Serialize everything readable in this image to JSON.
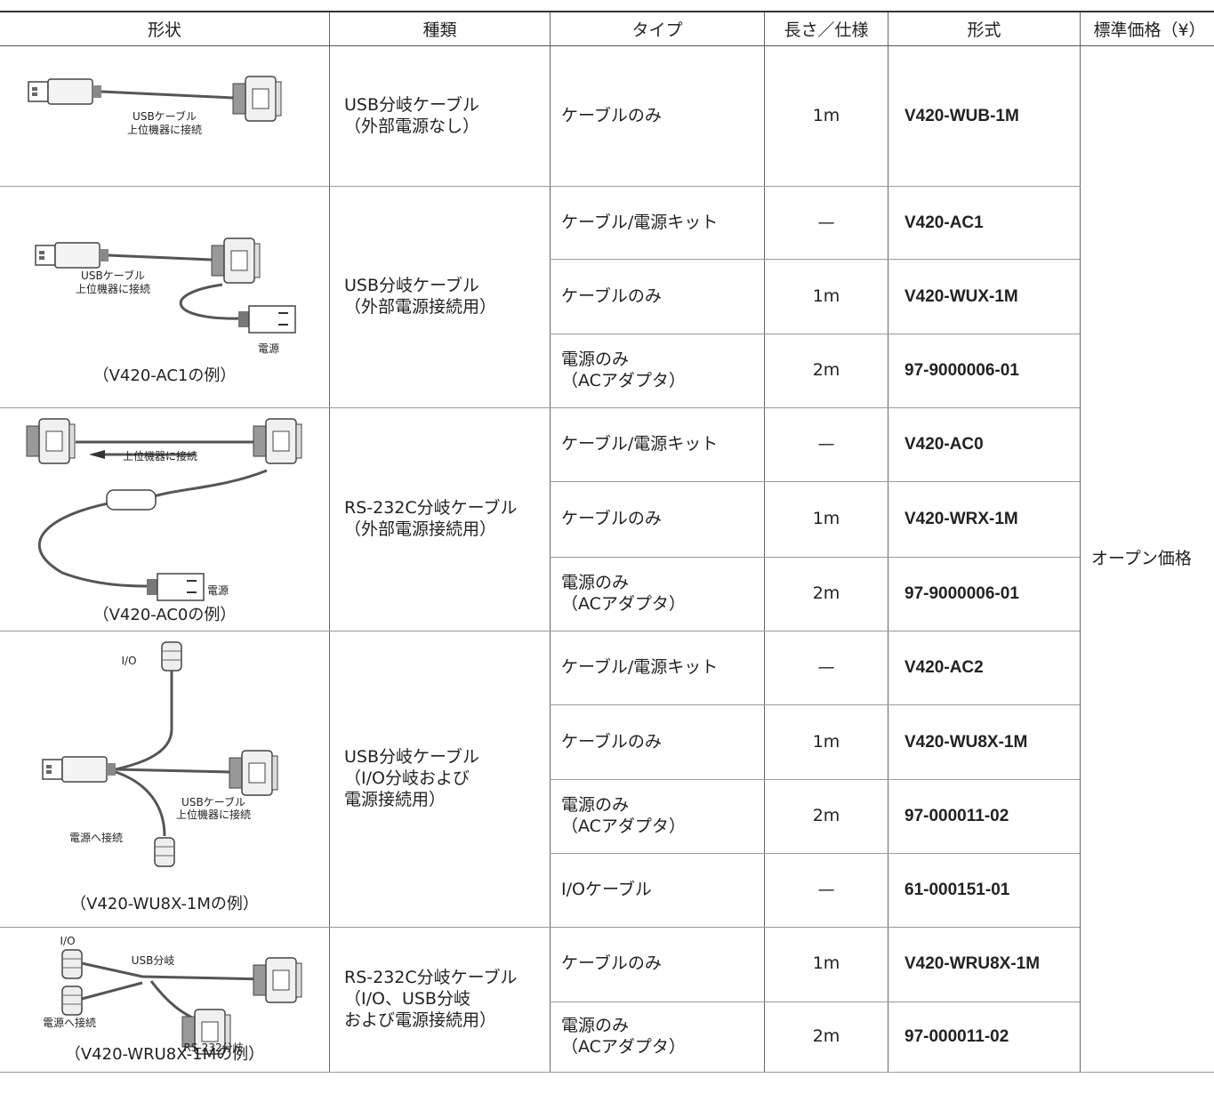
{
  "table": {
    "headers": [
      "形状",
      "種類",
      "タイプ",
      "長さ／仕様",
      "形式",
      "標準価格（¥）"
    ],
    "price": "オープン価格",
    "groups": [
      {
        "shape_labels": [
          "USBケーブル",
          "上位機器に接続"
        ],
        "kind": "USB分岐ケーブル\n（外部電源なし）",
        "rows": [
          {
            "type": "ケーブルのみ",
            "length": "1m",
            "model": "V420-WUB-1M"
          }
        ]
      },
      {
        "shape_labels": [
          "USBケーブル",
          "上位機器に接続",
          "電源"
        ],
        "caption": "（V420-AC1の例）",
        "kind": "USB分岐ケーブル\n（外部電源接続用）",
        "rows": [
          {
            "type": "ケーブル/電源キット",
            "length": "—",
            "model": "V420-AC1"
          },
          {
            "type": "ケーブルのみ",
            "length": "1m",
            "model": "V420-WUX-1M"
          },
          {
            "type": "電源のみ\n（ACアダプタ）",
            "length": "2m",
            "model": "97-9000006-01"
          }
        ]
      },
      {
        "shape_labels": [
          "上位機器に接続",
          "電源"
        ],
        "caption": "（V420-AC0の例）",
        "kind": "RS-232C分岐ケーブル\n（外部電源接続用）",
        "rows": [
          {
            "type": "ケーブル/電源キット",
            "length": "—",
            "model": "V420-AC0"
          },
          {
            "type": "ケーブルのみ",
            "length": "1m",
            "model": "V420-WRX-1M"
          },
          {
            "type": "電源のみ\n（ACアダプタ）",
            "length": "2m",
            "model": "97-9000006-01"
          }
        ]
      },
      {
        "shape_labels": [
          "I/O",
          "USBケーブル",
          "上位機器に接続",
          "電源へ接続"
        ],
        "caption": "（V420-WU8X-1Mの例）",
        "kind": "USB分岐ケーブル\n（I/O分岐および\n電源接続用）",
        "rows": [
          {
            "type": "ケーブル/電源キット",
            "length": "—",
            "model": "V420-AC2"
          },
          {
            "type": "ケーブルのみ",
            "length": "1m",
            "model": "V420-WU8X-1M"
          },
          {
            "type": "電源のみ\n（ACアダプタ）",
            "length": "2m",
            "model": "97-000011-02"
          },
          {
            "type": "I/Oケーブル",
            "length": "—",
            "model": "61-000151-01"
          }
        ]
      },
      {
        "shape_labels": [
          "I/O",
          "USB分岐",
          "電源へ接続",
          "RS-232分岐"
        ],
        "caption": "（V420-WRU8X-1Mの例）",
        "kind": "RS-232C分岐ケーブル\n（I/O、USB分岐\nおよび電源接続用）",
        "rows": [
          {
            "type": "ケーブルのみ",
            "length": "1m",
            "model": "V420-WRU8X-1M"
          },
          {
            "type": "電源のみ\n（ACアダプタ）",
            "length": "2m",
            "model": "97-000011-02"
          }
        ]
      }
    ]
  }
}
